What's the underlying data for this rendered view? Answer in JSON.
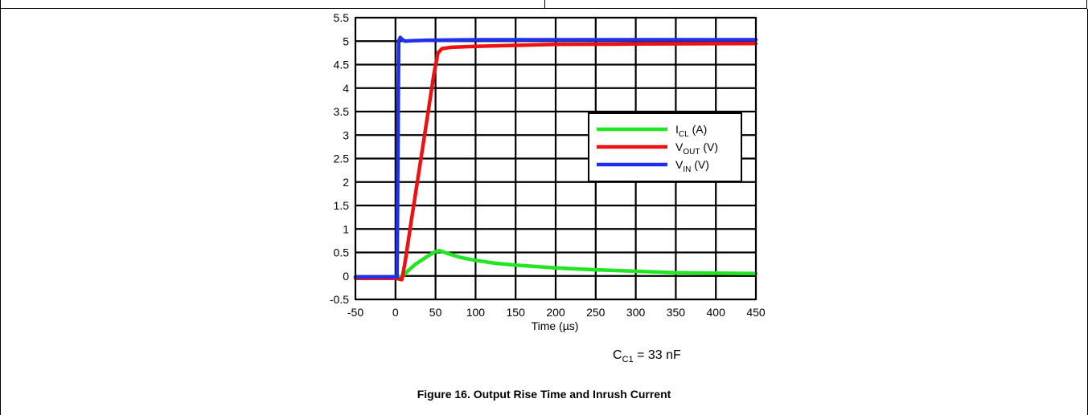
{
  "chart_data": {
    "type": "line",
    "title": "",
    "xlabel": "Time (µs)",
    "ylabel": "",
    "xlim": [
      -50,
      450
    ],
    "ylim": [
      -0.5,
      5.5
    ],
    "xticks": [
      "-50",
      "0",
      "50",
      "100",
      "150",
      "200",
      "250",
      "300",
      "350",
      "400",
      "450"
    ],
    "yticks": [
      "-0.5",
      "0",
      "0.5",
      "1",
      "1.5",
      "2",
      "2.5",
      "3",
      "3.5",
      "4",
      "4.5",
      "5",
      "5.5"
    ],
    "grid": true,
    "legend_position": "right",
    "series": [
      {
        "key": "icl",
        "legend_main": "I",
        "legend_sub": "CL",
        "legend_rest": " (A)",
        "color": "#22e622",
        "points": [
          [
            -50,
            -0.02
          ],
          [
            0,
            -0.02
          ],
          [
            8,
            -0.02
          ],
          [
            15,
            0.1
          ],
          [
            25,
            0.25
          ],
          [
            40,
            0.42
          ],
          [
            50,
            0.52
          ],
          [
            55,
            0.54
          ],
          [
            65,
            0.48
          ],
          [
            80,
            0.4
          ],
          [
            100,
            0.33
          ],
          [
            125,
            0.27
          ],
          [
            150,
            0.23
          ],
          [
            200,
            0.17
          ],
          [
            250,
            0.13
          ],
          [
            300,
            0.1
          ],
          [
            350,
            0.07
          ],
          [
            400,
            0.06
          ],
          [
            450,
            0.05
          ]
        ]
      },
      {
        "key": "vout",
        "legend_main": "V",
        "legend_sub": "OUT",
        "legend_rest": " (V)",
        "color": "#ee1111",
        "points": [
          [
            -50,
            -0.05
          ],
          [
            0,
            -0.05
          ],
          [
            8,
            -0.08
          ],
          [
            12,
            0.3
          ],
          [
            20,
            1.2
          ],
          [
            30,
            2.3
          ],
          [
            40,
            3.4
          ],
          [
            48,
            4.3
          ],
          [
            53,
            4.75
          ],
          [
            58,
            4.84
          ],
          [
            70,
            4.87
          ],
          [
            100,
            4.89
          ],
          [
            150,
            4.91
          ],
          [
            200,
            4.93
          ],
          [
            300,
            4.94
          ],
          [
            450,
            4.95
          ]
        ]
      },
      {
        "key": "vin",
        "legend_main": "V",
        "legend_sub": "IN",
        "legend_rest": " (V)",
        "color": "#1f2fee",
        "points": [
          [
            -50,
            -0.02
          ],
          [
            0,
            -0.02
          ],
          [
            2,
            -0.02
          ],
          [
            4,
            5.0
          ],
          [
            6,
            5.08
          ],
          [
            8,
            5.04
          ],
          [
            12,
            5.0
          ],
          [
            20,
            5.01
          ],
          [
            40,
            5.02
          ],
          [
            100,
            5.03
          ],
          [
            200,
            5.03
          ],
          [
            300,
            5.03
          ],
          [
            450,
            5.03
          ]
        ]
      }
    ]
  },
  "condition": {
    "main": "C",
    "sub": "C1",
    "rest": " = 33 nF"
  },
  "caption": "Figure 16. Output Rise Time and Inrush Current"
}
